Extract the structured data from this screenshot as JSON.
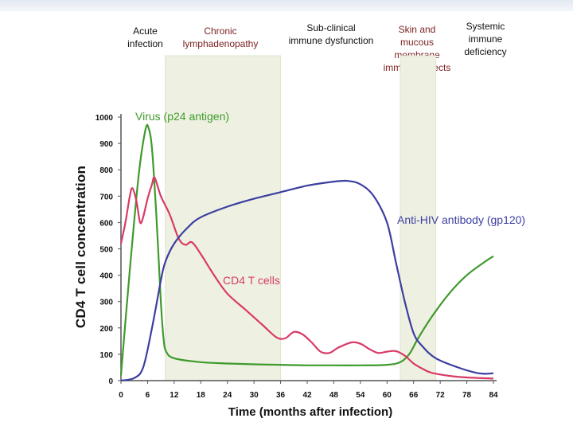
{
  "phases": {
    "acute": "Acute\ninfection",
    "chronic": "Chronic\nlymphadenopathy",
    "subclinical": "Sub-clinical\nimmune dysfunction",
    "skin": "Skin and\nmucous\nmembrane\nimmune defects",
    "systemic": "Systemic\nimmune\ndeficiency"
  },
  "colors": {
    "virus": "#3f9a2c",
    "cd4": "#d83a66",
    "antibody": "#3c3ea0",
    "shade": "#eef1e2",
    "axis": "#555555"
  },
  "chart_data": {
    "type": "line",
    "title": "",
    "xlabel": "Time (months after infection)",
    "ylabel": "CD4 T cell concentration",
    "xlim": [
      0,
      84
    ],
    "ylim": [
      0,
      1000
    ],
    "xticks": [
      0,
      6,
      12,
      18,
      24,
      30,
      36,
      42,
      48,
      54,
      60,
      66,
      72,
      78,
      84
    ],
    "yticks": [
      0,
      100,
      200,
      300,
      400,
      500,
      600,
      700,
      800,
      900,
      1000
    ],
    "shaded_regions": [
      [
        10,
        36
      ],
      [
        63,
        71
      ]
    ],
    "series": [
      {
        "name": "Virus (p24 antigen)",
        "color": "#3f9a2c",
        "points": [
          [
            0,
            20
          ],
          [
            2,
            420
          ],
          [
            4,
            780
          ],
          [
            5.5,
            950
          ],
          [
            6.2,
            960
          ],
          [
            7,
            880
          ],
          [
            8,
            620
          ],
          [
            9,
            300
          ],
          [
            9.6,
            160
          ],
          [
            10.2,
            110
          ],
          [
            12,
            85
          ],
          [
            18,
            70
          ],
          [
            24,
            65
          ],
          [
            30,
            62
          ],
          [
            36,
            60
          ],
          [
            42,
            58
          ],
          [
            48,
            58
          ],
          [
            54,
            58
          ],
          [
            60,
            60
          ],
          [
            63,
            70
          ],
          [
            65,
            100
          ],
          [
            67,
            160
          ],
          [
            70,
            240
          ],
          [
            74,
            330
          ],
          [
            78,
            400
          ],
          [
            82,
            450
          ],
          [
            84,
            472
          ]
        ]
      },
      {
        "name": "CD4 T cells",
        "color": "#d83a66",
        "points": [
          [
            0,
            520
          ],
          [
            1,
            600
          ],
          [
            2,
            700
          ],
          [
            2.6,
            730
          ],
          [
            3.5,
            680
          ],
          [
            4.3,
            600
          ],
          [
            5,
            620
          ],
          [
            6,
            690
          ],
          [
            7,
            745
          ],
          [
            7.6,
            770
          ],
          [
            9,
            700
          ],
          [
            11,
            630
          ],
          [
            13,
            540
          ],
          [
            14.5,
            515
          ],
          [
            16,
            525
          ],
          [
            18,
            480
          ],
          [
            21,
            400
          ],
          [
            24,
            330
          ],
          [
            28,
            270
          ],
          [
            32,
            210
          ],
          [
            35,
            165
          ],
          [
            37,
            160
          ],
          [
            39,
            185
          ],
          [
            41,
            175
          ],
          [
            43,
            145
          ],
          [
            45,
            110
          ],
          [
            47,
            105
          ],
          [
            49,
            125
          ],
          [
            52,
            145
          ],
          [
            54,
            140
          ],
          [
            56,
            120
          ],
          [
            58,
            105
          ],
          [
            60,
            110
          ],
          [
            62,
            112
          ],
          [
            64,
            95
          ],
          [
            66,
            65
          ],
          [
            68,
            45
          ],
          [
            70,
            30
          ],
          [
            74,
            18
          ],
          [
            78,
            12
          ],
          [
            84,
            8
          ]
        ]
      },
      {
        "name": "Anti-HIV antibody (gp120)",
        "color": "#3c3ea0",
        "points": [
          [
            0,
            0
          ],
          [
            3,
            10
          ],
          [
            5,
            50
          ],
          [
            7,
            200
          ],
          [
            9,
            380
          ],
          [
            10,
            450
          ],
          [
            12,
            520
          ],
          [
            15,
            580
          ],
          [
            18,
            620
          ],
          [
            24,
            660
          ],
          [
            30,
            690
          ],
          [
            36,
            715
          ],
          [
            42,
            740
          ],
          [
            48,
            755
          ],
          [
            51,
            758
          ],
          [
            54,
            745
          ],
          [
            57,
            700
          ],
          [
            60,
            600
          ],
          [
            62,
            450
          ],
          [
            64,
            300
          ],
          [
            66,
            180
          ],
          [
            68,
            130
          ],
          [
            71,
            85
          ],
          [
            76,
            50
          ],
          [
            80,
            30
          ],
          [
            82,
            26
          ],
          [
            84,
            28
          ]
        ]
      }
    ]
  }
}
